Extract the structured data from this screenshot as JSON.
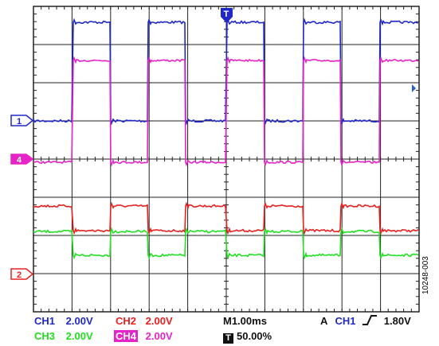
{
  "channels": {
    "ch1": {
      "name": "CH1",
      "scale": "2.00V",
      "marker": "1",
      "color": "#2028c8"
    },
    "ch2": {
      "name": "CH2",
      "scale": "2.00V",
      "marker": "2",
      "color": "#e82020"
    },
    "ch3": {
      "name": "CH3",
      "scale": "2.00V",
      "color": "#20e020"
    },
    "ch4": {
      "name": "CH4",
      "scale": "2.00V",
      "marker": "4",
      "color": "#e623c8"
    }
  },
  "timebase": "M1.00ms",
  "trigger": {
    "mode": "A",
    "source": "CH1",
    "level": "1.80V",
    "position": "50.00%",
    "marker": "T"
  },
  "figure_id": "10248-003"
}
